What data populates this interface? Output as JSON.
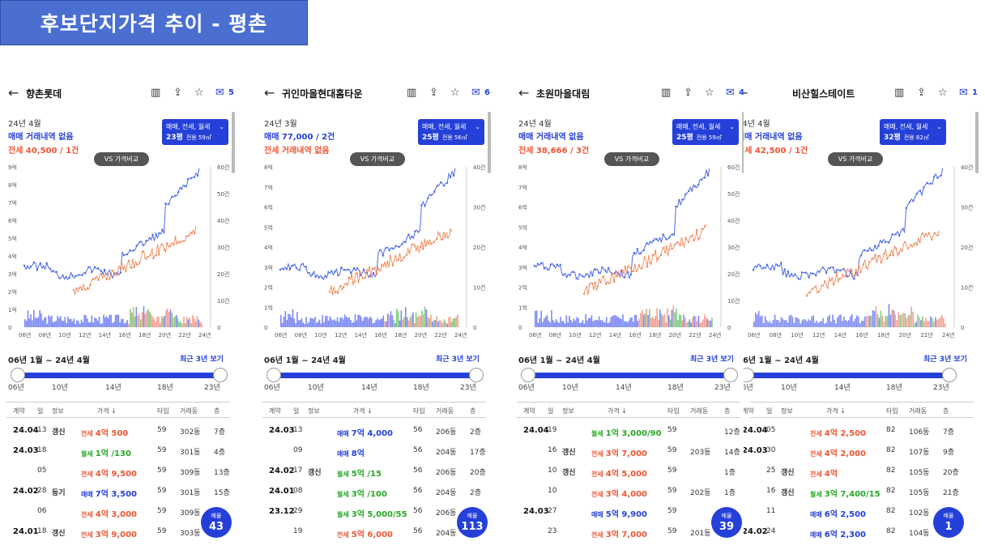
{
  "title": "후보단지가격 추이 - 평촌",
  "icons": [
    "map-icon",
    "share-icon",
    "star-icon",
    "chat-icon"
  ],
  "colors": {
    "sale": "#2540d8",
    "jeonse": "#ef5633",
    "wolse": "#26a826",
    "accent": "#2540d8"
  },
  "panels": [
    {
      "name": "향촌롯데",
      "comments": "5",
      "month": "24년 4월",
      "sale_text": "매매 거래내역 없음",
      "jeonse_text": "전세 40,500 / 1건",
      "filter": "매매, 전세, 월세",
      "area_py": "23평",
      "area_m2": "전용 59㎡",
      "vs": "VS 가격비교",
      "chart": {
        "left_ticks": [
          "9억",
          "8억",
          "7억",
          "6억",
          "5억",
          "4억",
          "3억",
          "2억",
          "1억",
          "0"
        ],
        "right_ticks": [
          "60건",
          "50건",
          "40건",
          "30건",
          "20건",
          "10건",
          "0"
        ],
        "x_ticks": [
          "06년",
          "08년",
          "10년",
          "12년",
          "14년",
          "16년",
          "18년",
          "20년",
          "22년",
          "24년"
        ]
      },
      "range": "06년 1월 ~ 24년 4월",
      "recent": "최근 3년 보기",
      "slider_ticks": [
        "06년",
        "10년",
        "14년",
        "18년",
        "23년"
      ],
      "cols": [
        "계약",
        "일",
        "정보",
        "가격 ↓",
        "타입",
        "거래동",
        "층"
      ],
      "rows": [
        {
          "ym": "24.04",
          "d": "13",
          "info": "갱신",
          "type": "전세",
          "price": "4억 500",
          "tp": "59",
          "dong": "302동",
          "fl": "7층"
        },
        {
          "ym": "24.03",
          "d": "18",
          "info": "",
          "type": "월세",
          "price": "1억 /130",
          "tp": "59",
          "dong": "301동",
          "fl": "4층"
        },
        {
          "ym": "",
          "d": "05",
          "info": "",
          "type": "전세",
          "price": "4억 9,500",
          "tp": "59",
          "dong": "309동",
          "fl": "13층"
        },
        {
          "ym": "24.02",
          "d": "28",
          "info": "등기",
          "type": "매매",
          "price": "7억 3,500",
          "tp": "59",
          "dong": "301동",
          "fl": "15층"
        },
        {
          "ym": "",
          "d": "06",
          "info": "",
          "type": "전세",
          "price": "4억 3,000",
          "tp": "59",
          "dong": "309동",
          "fl": ""
        },
        {
          "ym": "24.01",
          "d": "18",
          "info": "갱신",
          "type": "전세",
          "price": "3억 9,000",
          "tp": "59",
          "dong": "303동",
          "fl": ""
        }
      ],
      "badge_label": "매물",
      "badge_count": "43"
    },
    {
      "name": "귀인마을현대홈타운",
      "comments": "6",
      "month": "24년 3월",
      "sale_text": "매매 77,000 / 2건",
      "jeonse_text": "전세 거래내역 없음",
      "filter": "매매, 전세, 월세",
      "area_py": "25평",
      "area_m2": "전용 56㎡",
      "vs": "VS 가격비교",
      "chart": {
        "left_ticks": [
          "8억",
          "7억",
          "6억",
          "5억",
          "4억",
          "3억",
          "2억",
          "1억",
          "0"
        ],
        "right_ticks": [
          "40건",
          "30건",
          "20건",
          "10건",
          "0"
        ],
        "x_ticks": [
          "06년",
          "08년",
          "10년",
          "12년",
          "14년",
          "16년",
          "18년",
          "20년",
          "22년",
          "24년"
        ]
      },
      "range": "06년 1월 ~ 24년 4월",
      "recent": "최근 3년 보기",
      "slider_ticks": [
        "06년",
        "10년",
        "14년",
        "18년",
        "23년"
      ],
      "cols": [
        "계약",
        "일",
        "정보",
        "가격 ↓",
        "타입",
        "거래동",
        "층"
      ],
      "rows": [
        {
          "ym": "24.03",
          "d": "13",
          "info": "",
          "type": "매매",
          "price": "7억 4,000",
          "tp": "56",
          "dong": "206동",
          "fl": "2층"
        },
        {
          "ym": "",
          "d": "09",
          "info": "",
          "type": "매매",
          "price": "8억",
          "tp": "56",
          "dong": "204동",
          "fl": "17층"
        },
        {
          "ym": "24.02",
          "d": "17",
          "info": "갱신",
          "type": "월세",
          "price": "5억 /15",
          "tp": "56",
          "dong": "206동",
          "fl": "20층"
        },
        {
          "ym": "24.01",
          "d": "08",
          "info": "",
          "type": "월세",
          "price": "3억 /100",
          "tp": "56",
          "dong": "204동",
          "fl": "2층"
        },
        {
          "ym": "23.12",
          "d": "29",
          "info": "",
          "type": "월세",
          "price": "3억 5,000/55",
          "tp": "56",
          "dong": "206동",
          "fl": ""
        },
        {
          "ym": "",
          "d": "19",
          "info": "",
          "type": "전세",
          "price": "5억 6,000",
          "tp": "56",
          "dong": "204동",
          "fl": ""
        }
      ],
      "badge_label": "매물",
      "badge_count": "113"
    },
    {
      "name": "초원마을대림",
      "comments": "4",
      "month": "24년 4월",
      "sale_text": "매매 거래내역 없음",
      "jeonse_text": "전세 38,666 / 3건",
      "filter": "매매, 전세, 월세",
      "area_py": "25평",
      "area_m2": "전용 59㎡",
      "vs": "VS 가격비교",
      "chart": {
        "left_ticks": [
          "8억",
          "7억",
          "6억",
          "5억",
          "4억",
          "3억",
          "2억",
          "1억",
          "0"
        ],
        "right_ticks": [
          "60건",
          "50건",
          "40건",
          "30건",
          "20건",
          "10건",
          "0"
        ],
        "x_ticks": [
          "06년",
          "08년",
          "10년",
          "12년",
          "14년",
          "16년",
          "18년",
          "20년",
          "22년",
          "24년"
        ]
      },
      "range": "06년 1월 ~ 24년 4월",
      "recent": "최근 3년 보기",
      "slider_ticks": [
        "06년",
        "10년",
        "14년",
        "18년",
        "23년"
      ],
      "cols": [
        "계약",
        "일",
        "정보",
        "가격 ↓",
        "타입",
        "거래동",
        "층"
      ],
      "rows": [
        {
          "ym": "24.04",
          "d": "19",
          "info": "",
          "type": "월세",
          "price": "1억 3,000/90",
          "tp": "59",
          "dong": "",
          "fl": "12층"
        },
        {
          "ym": "",
          "d": "16",
          "info": "갱신",
          "type": "전세",
          "price": "3억 7,000",
          "tp": "59",
          "dong": "203동",
          "fl": "14층"
        },
        {
          "ym": "",
          "d": "10",
          "info": "갱신",
          "type": "전세",
          "price": "4억 5,000",
          "tp": "59",
          "dong": "",
          "fl": "1층"
        },
        {
          "ym": "",
          "d": "10",
          "info": "",
          "type": "전세",
          "price": "3억 4,000",
          "tp": "59",
          "dong": "202동",
          "fl": "1층"
        },
        {
          "ym": "24.03",
          "d": "27",
          "info": "",
          "type": "매매",
          "price": "5억 9,900",
          "tp": "59",
          "dong": "",
          "fl": ""
        },
        {
          "ym": "",
          "d": "23",
          "info": "",
          "type": "전세",
          "price": "3억 7,000",
          "tp": "59",
          "dong": "201동",
          "fl": ""
        }
      ],
      "badge_label": "매물",
      "badge_count": "39"
    },
    {
      "name": "비산힐스테이트",
      "comments": "1",
      "month": "24년 4월",
      "sale_text": "매매 거래내역 없음",
      "jeonse_text": "전세 42,500 / 1건",
      "filter": "매매, 전세, 월세",
      "area_py": "32평",
      "area_m2": "전용 82㎡",
      "vs": "VS 가격비교",
      "chart": {
        "left_ticks": [],
        "right_ticks": [
          "40건",
          "30건",
          "20건",
          "10건",
          "0"
        ],
        "x_ticks": [
          "06년",
          "08년",
          "10년",
          "12년",
          "14년",
          "16년",
          "18년",
          "20년",
          "22년",
          "24년"
        ]
      },
      "range": "06년 1월 ~ 24년 4월",
      "recent": "최근 3년 보기",
      "slider_ticks": [
        "06년",
        "10년",
        "14년",
        "18년",
        "23년"
      ],
      "cols": [
        "계약",
        "일",
        "정보",
        "가격 ↓",
        "타입",
        "거래동",
        "층"
      ],
      "rows": [
        {
          "ym": "24.04",
          "d": "05",
          "info": "",
          "type": "전세",
          "price": "4억 2,500",
          "tp": "82",
          "dong": "106동",
          "fl": "7층"
        },
        {
          "ym": "24.03",
          "d": "30",
          "info": "",
          "type": "전세",
          "price": "4억 2,000",
          "tp": "82",
          "dong": "107동",
          "fl": "9층"
        },
        {
          "ym": "",
          "d": "25",
          "info": "갱신",
          "type": "전세",
          "price": "4억",
          "tp": "82",
          "dong": "105동",
          "fl": "20층"
        },
        {
          "ym": "",
          "d": "16",
          "info": "갱신",
          "type": "월세",
          "price": "3억 7,400/15",
          "tp": "82",
          "dong": "105동",
          "fl": "21층"
        },
        {
          "ym": "",
          "d": "11",
          "info": "",
          "type": "매매",
          "price": "6억 2,500",
          "tp": "82",
          "dong": "102동",
          "fl": ""
        },
        {
          "ym": "24.02",
          "d": "24",
          "info": "",
          "type": "매매",
          "price": "6억 2,300",
          "tp": "82",
          "dong": "104동",
          "fl": ""
        }
      ],
      "badge_label": "매물",
      "badge_count": "1"
    }
  ]
}
